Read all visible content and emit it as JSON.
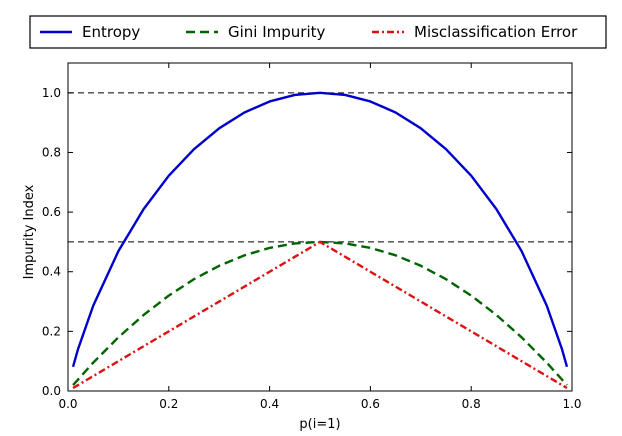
{
  "chart_data": {
    "type": "line",
    "xlabel": "p(i=1)",
    "ylabel": "Impurity Index",
    "xlim": [
      0.0,
      1.0
    ],
    "ylim": [
      0.0,
      1.1
    ],
    "xticks": [
      "0.0",
      "0.2",
      "0.4",
      "0.6",
      "0.8",
      "1.0"
    ],
    "yticks": [
      "0.0",
      "0.2",
      "0.4",
      "0.6",
      "0.8",
      "1.0"
    ],
    "grid": false,
    "legend_placement": "top (above plot, 3 columns)",
    "reference_lines": [
      0.5,
      1.0
    ],
    "series": [
      {
        "name": "Entropy",
        "color": "#0000cc",
        "style": "solid",
        "x": [
          0.01,
          0.02,
          0.05,
          0.1,
          0.15,
          0.2,
          0.25,
          0.3,
          0.35,
          0.4,
          0.45,
          0.5,
          0.55,
          0.6,
          0.65,
          0.7,
          0.75,
          0.8,
          0.85,
          0.9,
          0.95,
          0.98,
          0.99
        ],
        "values": [
          0.081,
          0.141,
          0.286,
          0.469,
          0.61,
          0.722,
          0.811,
          0.881,
          0.934,
          0.971,
          0.993,
          1.0,
          0.993,
          0.971,
          0.934,
          0.881,
          0.811,
          0.722,
          0.61,
          0.469,
          0.286,
          0.141,
          0.081
        ]
      },
      {
        "name": "Gini Impurity",
        "color": "#006400",
        "style": "dashed",
        "x": [
          0.01,
          0.05,
          0.1,
          0.15,
          0.2,
          0.25,
          0.3,
          0.35,
          0.4,
          0.45,
          0.5,
          0.55,
          0.6,
          0.65,
          0.7,
          0.75,
          0.8,
          0.85,
          0.9,
          0.95,
          0.99
        ],
        "values": [
          0.0198,
          0.095,
          0.18,
          0.255,
          0.32,
          0.375,
          0.42,
          0.455,
          0.48,
          0.495,
          0.5,
          0.495,
          0.48,
          0.455,
          0.42,
          0.375,
          0.32,
          0.255,
          0.18,
          0.095,
          0.0198
        ]
      },
      {
        "name": "Misclassification Error",
        "color": "#dd1111",
        "style": "dashdot",
        "x": [
          0.01,
          0.1,
          0.2,
          0.3,
          0.4,
          0.5,
          0.6,
          0.7,
          0.8,
          0.9,
          0.99
        ],
        "values": [
          0.01,
          0.1,
          0.2,
          0.3,
          0.4,
          0.5,
          0.4,
          0.3,
          0.2,
          0.1,
          0.01
        ]
      }
    ]
  }
}
